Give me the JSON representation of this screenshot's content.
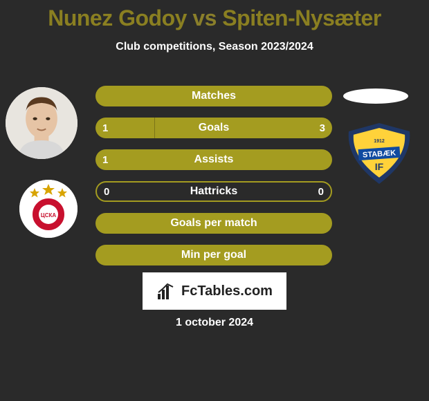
{
  "title": {
    "player_a_name": "Nunez Godoy",
    "vs": " vs ",
    "player_b_name": "Spiten-Nysæter",
    "player_a_color": "#8a7f21",
    "vs_color": "#8a7f2a",
    "player_b_color": "#8a7f21"
  },
  "subtitle": "Club competitions, Season 2023/2024",
  "bars_bg_outline": "#a49c20",
  "bars_fill_a": "#a49c20",
  "bars_fill_b": "#a49c20",
  "bars": [
    {
      "label": "Matches",
      "value_a": null,
      "value_b": null,
      "fill_a_pct": 100,
      "fill_b_pct": 0,
      "outline_only": false
    },
    {
      "label": "Goals",
      "value_a": "1",
      "value_b": "3",
      "fill_a_pct": 25,
      "fill_b_pct": 75,
      "outline_only": false
    },
    {
      "label": "Assists",
      "value_a": "1",
      "value_b": null,
      "fill_a_pct": 100,
      "fill_b_pct": 0,
      "outline_only": false
    },
    {
      "label": "Hattricks",
      "value_a": "0",
      "value_b": "0",
      "fill_a_pct": 0,
      "fill_b_pct": 0,
      "outline_only": true
    },
    {
      "label": "Goals per match",
      "value_a": null,
      "value_b": null,
      "fill_a_pct": 100,
      "fill_b_pct": 0,
      "outline_only": false
    },
    {
      "label": "Min per goal",
      "value_a": null,
      "value_b": null,
      "fill_a_pct": 100,
      "fill_b_pct": 0,
      "outline_only": false
    }
  ],
  "player_b_badge": {
    "shield_outer": "#1f3766",
    "shield_inner": "#ffd23a",
    "stripe": "#0f4aa0",
    "text_top": "STABÆK",
    "text_bottom": "IF",
    "year": "1912"
  },
  "player_a_badge": {
    "ring": "#ffffff",
    "star_color": "#d8a400",
    "core": "#c8102e",
    "text": "ЦСКА"
  },
  "fctables_brand": "FcTables.com",
  "date": "1 october 2024"
}
